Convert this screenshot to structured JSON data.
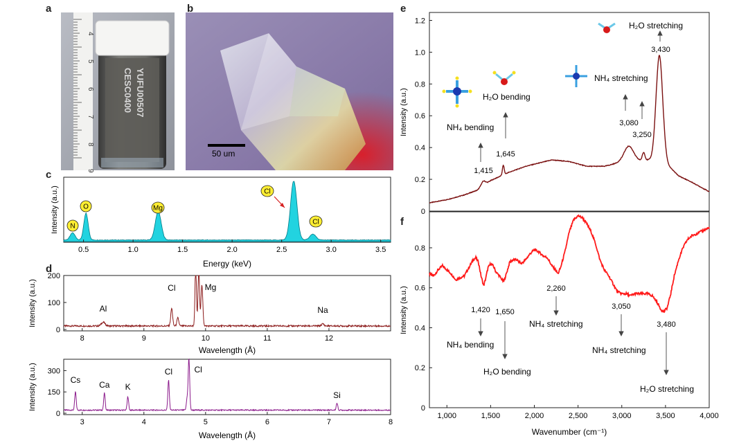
{
  "panels": {
    "a": "a",
    "b": "b",
    "c": "c",
    "d": "d",
    "e": "e",
    "f": "f"
  },
  "photo_a": {
    "label_line1": "CESC0400",
    "label_line2": "YUFU00507",
    "ruler_numbers": [
      "4",
      "5",
      "6",
      "7",
      "8",
      "9"
    ]
  },
  "photo_b": {
    "scale_bar": "50 um"
  },
  "colors": {
    "edx_fill": "#22d3e0",
    "wdx_top": "#8b1a1a",
    "wdx_bottom": "#8b1a8b",
    "ir_e": "#7a1010",
    "ir_f": "#ff1a1a",
    "badge": "#ffee33"
  },
  "chart_data": [
    {
      "id": "c",
      "type": "area",
      "xlabel": "Energy (keV)",
      "ylabel": "Intensity (a.u.)",
      "xlim": [
        0.3,
        3.6
      ],
      "xticks": [
        "0.5",
        "1.0",
        "1.5",
        "2.0",
        "2.5",
        "3.0",
        "3.5"
      ],
      "peaks": [
        {
          "label": "N",
          "x": 0.39,
          "h": 0.12,
          "w": 0.025
        },
        {
          "label": "O",
          "x": 0.525,
          "h": 0.45,
          "w": 0.022
        },
        {
          "label": "Mg",
          "x": 1.254,
          "h": 0.48,
          "w": 0.03
        },
        {
          "label": "Cl",
          "x": 2.622,
          "h": 1.0,
          "w": 0.032
        },
        {
          "label": "Cl",
          "x": 2.815,
          "h": 0.1,
          "w": 0.03
        }
      ],
      "badges": [
        "N",
        "O",
        "Mg",
        "Cl",
        "Cl"
      ]
    },
    {
      "id": "d-top",
      "type": "line",
      "xlabel": "Wavelength (Å)",
      "ylabel": "Intensity (a.u.)",
      "xlim": [
        7.7,
        13.0
      ],
      "ylim": [
        0,
        200
      ],
      "xticks": [
        "8",
        "9",
        "10",
        "11",
        "12"
      ],
      "yticks": [
        "0",
        "100",
        "200"
      ],
      "peaks": [
        {
          "x": 8.34,
          "h": 14,
          "w": 0.03
        },
        {
          "x": 9.45,
          "h": 65,
          "w": 0.015
        },
        {
          "x": 9.55,
          "h": 30,
          "w": 0.015
        },
        {
          "x": 9.84,
          "h": 220,
          "w": 0.012
        },
        {
          "x": 9.89,
          "h": 220,
          "w": 0.012
        },
        {
          "x": 9.94,
          "h": 150,
          "w": 0.015
        },
        {
          "x": 11.9,
          "h": 8,
          "w": 0.02
        }
      ],
      "annotations": [
        {
          "text": "Al",
          "x": 8.34
        },
        {
          "text": "Cl",
          "x": 9.45
        },
        {
          "text": "Mg",
          "x": 10.08
        },
        {
          "text": "Na",
          "x": 11.9
        }
      ]
    },
    {
      "id": "d-bottom",
      "type": "line",
      "xlabel": "Wavelength (Å)",
      "ylabel": "Intensity (a.u.)",
      "xlim": [
        2.7,
        8.0
      ],
      "ylim": [
        0,
        380
      ],
      "xticks": [
        "3",
        "4",
        "5",
        "6",
        "7",
        "8"
      ],
      "yticks": [
        "0",
        "150",
        "300"
      ],
      "peaks": [
        {
          "x": 2.89,
          "h": 130,
          "w": 0.012
        },
        {
          "x": 3.36,
          "h": 120,
          "w": 0.012
        },
        {
          "x": 3.74,
          "h": 95,
          "w": 0.012
        },
        {
          "x": 4.4,
          "h": 210,
          "w": 0.012
        },
        {
          "x": 4.7,
          "h": 80,
          "w": 0.012
        },
        {
          "x": 4.73,
          "h": 370,
          "w": 0.012
        },
        {
          "x": 7.13,
          "h": 50,
          "w": 0.012
        }
      ],
      "annotations": [
        {
          "text": "Cs",
          "x": 2.89
        },
        {
          "text": "Ca",
          "x": 3.36
        },
        {
          "text": "K",
          "x": 3.74
        },
        {
          "text": "Cl",
          "x": 4.4
        },
        {
          "text": "Cl",
          "x": 4.88
        },
        {
          "text": "Si",
          "x": 7.13
        }
      ]
    },
    {
      "id": "e",
      "type": "line",
      "ylabel": "Intensity (a.u.)",
      "xlim": [
        800,
        4000
      ],
      "ylim": [
        0,
        1.25
      ],
      "yticks": [
        "0",
        "0.2",
        "0.4",
        "0.6",
        "0.8",
        "1.0",
        "1.2"
      ],
      "baseline": [
        [
          800,
          0.05
        ],
        [
          1000,
          0.07
        ],
        [
          1200,
          0.1
        ],
        [
          1350,
          0.13
        ],
        [
          1500,
          0.19
        ],
        [
          1700,
          0.24
        ],
        [
          1900,
          0.28
        ],
        [
          2050,
          0.3
        ],
        [
          2200,
          0.32
        ],
        [
          2400,
          0.31
        ],
        [
          2600,
          0.28
        ],
        [
          2800,
          0.28
        ],
        [
          2950,
          0.3
        ],
        [
          3150,
          0.31
        ],
        [
          3300,
          0.32
        ],
        [
          3500,
          0.3
        ],
        [
          3650,
          0.22
        ],
        [
          3800,
          0.18
        ],
        [
          4000,
          0.12
        ]
      ],
      "peaks": [
        {
          "x": 1415,
          "h": 0.03,
          "w": 25
        },
        {
          "x": 1645,
          "h": 0.06,
          "w": 10
        },
        {
          "x": 3080,
          "h": 0.1,
          "w": 55
        },
        {
          "x": 3250,
          "h": 0.05,
          "w": 15
        },
        {
          "x": 3430,
          "h": 0.67,
          "w": 38
        }
      ],
      "labels": [
        "1,415",
        "1,645",
        "3,080",
        "3,250",
        "3,430"
      ],
      "captions": {
        "nh4_bending": "NH₄ bending",
        "h2o_bending": "H₂O bending",
        "nh4_stretching": "NH₄ stretching",
        "h2o_stretching": "H₂O stretching"
      }
    },
    {
      "id": "f",
      "type": "line",
      "xlabel": "Wavenumber (cm⁻¹)",
      "ylabel": "Intensity (a.u.)",
      "xlim": [
        800,
        4000
      ],
      "ylim": [
        0,
        0.98
      ],
      "xticks": [
        "1,000",
        "1,500",
        "2,000",
        "2,500",
        "3,000",
        "3,500",
        "4,000"
      ],
      "yticks": [
        "0",
        "0.2",
        "0.4",
        "0.6",
        "0.8"
      ],
      "points": [
        [
          800,
          0.67
        ],
        [
          850,
          0.66
        ],
        [
          900,
          0.69
        ],
        [
          950,
          0.71
        ],
        [
          1000,
          0.69
        ],
        [
          1050,
          0.67
        ],
        [
          1100,
          0.64
        ],
        [
          1150,
          0.65
        ],
        [
          1200,
          0.66
        ],
        [
          1250,
          0.7
        ],
        [
          1300,
          0.74
        ],
        [
          1330,
          0.75
        ],
        [
          1360,
          0.73
        ],
        [
          1390,
          0.66
        ],
        [
          1420,
          0.61
        ],
        [
          1440,
          0.64
        ],
        [
          1470,
          0.7
        ],
        [
          1500,
          0.72
        ],
        [
          1530,
          0.71
        ],
        [
          1560,
          0.68
        ],
        [
          1600,
          0.66
        ],
        [
          1630,
          0.64
        ],
        [
          1650,
          0.63
        ],
        [
          1680,
          0.67
        ],
        [
          1720,
          0.73
        ],
        [
          1760,
          0.74
        ],
        [
          1800,
          0.74
        ],
        [
          1850,
          0.72
        ],
        [
          1900,
          0.74
        ],
        [
          1950,
          0.77
        ],
        [
          2000,
          0.79
        ],
        [
          2050,
          0.78
        ],
        [
          2100,
          0.76
        ],
        [
          2150,
          0.75
        ],
        [
          2200,
          0.71
        ],
        [
          2240,
          0.69
        ],
        [
          2270,
          0.67
        ],
        [
          2300,
          0.7
        ],
        [
          2350,
          0.78
        ],
        [
          2400,
          0.88
        ],
        [
          2450,
          0.94
        ],
        [
          2500,
          0.96
        ],
        [
          2550,
          0.95
        ],
        [
          2600,
          0.92
        ],
        [
          2650,
          0.88
        ],
        [
          2700,
          0.82
        ],
        [
          2750,
          0.74
        ],
        [
          2800,
          0.69
        ],
        [
          2850,
          0.66
        ],
        [
          2900,
          0.62
        ],
        [
          2950,
          0.58
        ],
        [
          3000,
          0.57
        ],
        [
          3050,
          0.57
        ],
        [
          3100,
          0.56
        ],
        [
          3150,
          0.57
        ],
        [
          3200,
          0.57
        ],
        [
          3250,
          0.57
        ],
        [
          3300,
          0.57
        ],
        [
          3350,
          0.56
        ],
        [
          3400,
          0.53
        ],
        [
          3450,
          0.49
        ],
        [
          3480,
          0.48
        ],
        [
          3520,
          0.5
        ],
        [
          3560,
          0.57
        ],
        [
          3600,
          0.66
        ],
        [
          3650,
          0.74
        ],
        [
          3700,
          0.8
        ],
        [
          3750,
          0.84
        ],
        [
          3800,
          0.86
        ],
        [
          3850,
          0.87
        ],
        [
          3900,
          0.88
        ],
        [
          3950,
          0.89
        ],
        [
          4000,
          0.9
        ]
      ],
      "labels": [
        "1,420",
        "1,650",
        "2,260",
        "3,050",
        "3,480"
      ],
      "captions": {
        "nh4_bending": "NH₄ bending",
        "h2o_bending": "H₂O bending",
        "nh4_stretching_1": "NH₄ stretching",
        "nh4_stretching_2": "NH₄ stretching",
        "h2o_stretching": "H₂O stretching"
      }
    }
  ]
}
